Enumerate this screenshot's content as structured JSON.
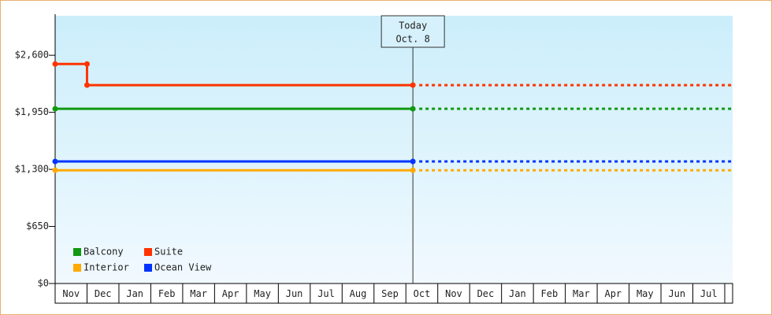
{
  "chart_data": {
    "type": "step-line",
    "categories": [
      "Nov",
      "Dec",
      "Jan",
      "Feb",
      "Mar",
      "Apr",
      "May",
      "Jun",
      "Jul",
      "Aug",
      "Sep",
      "Oct",
      "Nov",
      "Dec",
      "Jan",
      "Feb",
      "Mar",
      "Apr",
      "May",
      "Jun",
      "Jul"
    ],
    "series": [
      {
        "name": "Balcony",
        "color": "#119911",
        "values": [
          1990,
          1990,
          1990,
          1990,
          1990,
          1990,
          1990,
          1990,
          1990,
          1990,
          1990,
          1990,
          null,
          null,
          null,
          null,
          null,
          null,
          null,
          null,
          null
        ]
      },
      {
        "name": "Suite",
        "color": "#ff3300",
        "values": [
          2500,
          2260,
          2260,
          2260,
          2260,
          2260,
          2260,
          2260,
          2260,
          2260,
          2260,
          2260,
          null,
          null,
          null,
          null,
          null,
          null,
          null,
          null,
          null
        ]
      },
      {
        "name": "Interior",
        "color": "#ffaa00",
        "values": [
          1290,
          1290,
          1290,
          1290,
          1290,
          1290,
          1290,
          1290,
          1290,
          1290,
          1290,
          1290,
          null,
          null,
          null,
          null,
          null,
          null,
          null,
          null,
          null
        ]
      },
      {
        "name": "Ocean View",
        "color": "#0033ff",
        "values": [
          1390,
          1390,
          1390,
          1390,
          1390,
          1390,
          1390,
          1390,
          1390,
          1390,
          1390,
          1390,
          null,
          null,
          null,
          null,
          null,
          null,
          null,
          null,
          null
        ]
      }
    ],
    "ylim": [
      0,
      3050
    ],
    "yticks": [
      {
        "value": 0,
        "label": "$0"
      },
      {
        "value": 650,
        "label": "$650"
      },
      {
        "value": 1300,
        "label": "$1,300"
      },
      {
        "value": 1950,
        "label": "$1,950"
      },
      {
        "value": 2600,
        "label": "$2,600"
      }
    ],
    "annotation": {
      "title": "Today",
      "date": "Oct. 8"
    }
  }
}
